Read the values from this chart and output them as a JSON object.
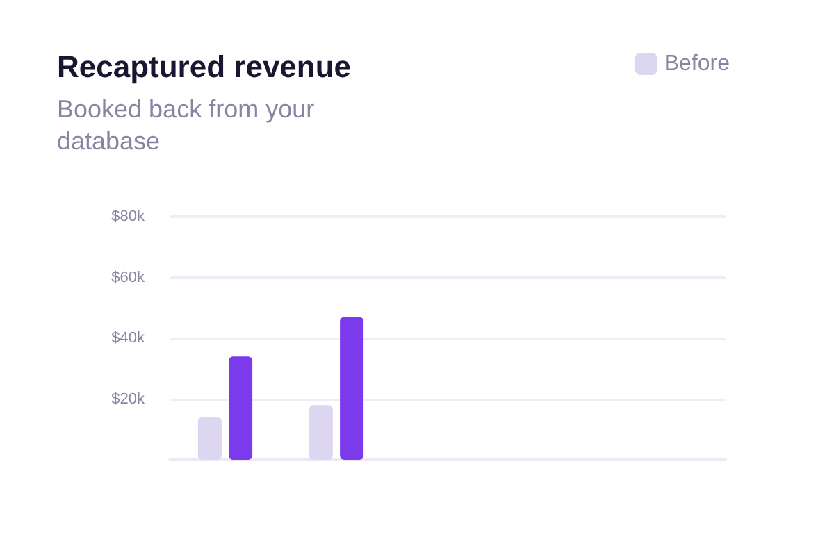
{
  "chart_data": {
    "type": "bar",
    "title": "Recaptured revenue",
    "subtitle": "Booked back from your database",
    "categories": [
      null,
      null,
      null,
      null,
      null
    ],
    "series": [
      {
        "name": "Before",
        "color": "#dcd6f0",
        "values": [
          14,
          18,
          null,
          null,
          null
        ]
      },
      {
        "color": "#7c3aed",
        "values": [
          34,
          47,
          null,
          null,
          null
        ]
      }
    ],
    "ylim": [
      0,
      80
    ],
    "yticks": [
      {
        "value": 0,
        "label": null
      },
      {
        "value": 20,
        "label": "$20k"
      },
      {
        "value": 40,
        "label": "$40k"
      },
      {
        "value": 60,
        "label": "$60k"
      },
      {
        "value": 80,
        "label": "$80k"
      }
    ],
    "grid": "y",
    "legend": "top right"
  }
}
